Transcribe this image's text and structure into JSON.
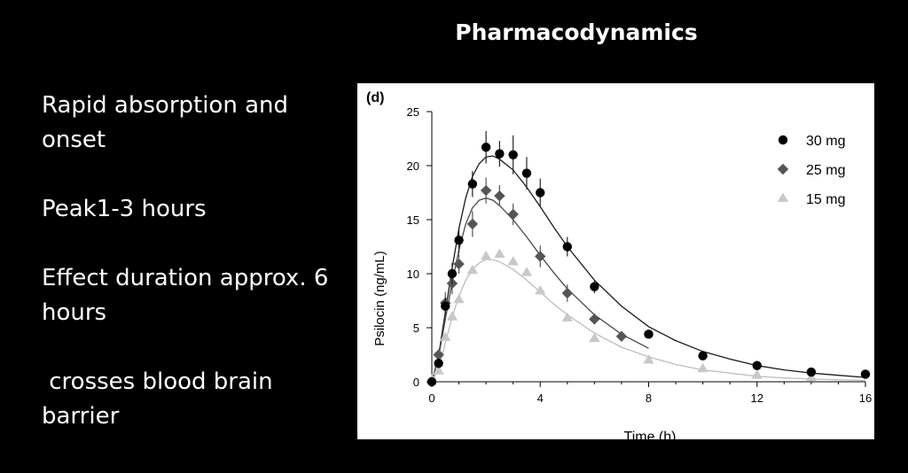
{
  "slide": {
    "title": "Pharmacodynamics",
    "bullets": [
      "Rapid absorption and onset",
      "Peak1-3 hours",
      "Effect duration approx. 6 hours",
      " crosses blood brain barrier"
    ]
  },
  "chart_data": {
    "type": "scatter",
    "panel_label": "(d)",
    "xlabel": "Time (h)",
    "ylabel": "Psilocin (ng/mL)",
    "xlim": [
      0,
      16
    ],
    "ylim": [
      0,
      25
    ],
    "xticks": [
      0,
      4,
      8,
      12,
      16
    ],
    "yticks": [
      0,
      5,
      10,
      15,
      20,
      25
    ],
    "legend_position": "top-right",
    "series": [
      {
        "name": "30 mg",
        "marker": "circle",
        "color": "#000000",
        "fit_color": "#1a1a1a",
        "x": [
          0,
          0.25,
          0.5,
          0.75,
          1,
          1.5,
          2,
          2.5,
          3,
          3.5,
          4,
          5,
          6,
          8,
          10,
          12,
          14,
          16
        ],
        "y": [
          0,
          1.7,
          7.0,
          10.0,
          13.1,
          18.3,
          21.7,
          21.1,
          21.0,
          19.3,
          17.5,
          12.5,
          8.8,
          4.4,
          2.4,
          1.5,
          0.9,
          0.7
        ],
        "err": [
          0,
          0.4,
          0.8,
          1.0,
          1.2,
          1.2,
          1.5,
          1.2,
          1.8,
          1.5,
          1.3,
          0.9,
          0.6,
          0.3,
          0,
          0,
          0,
          0
        ],
        "fit": {
          "x": [
            0,
            0.25,
            0.5,
            0.75,
            1,
            1.25,
            1.5,
            1.75,
            2,
            2.25,
            2.5,
            3,
            3.5,
            4,
            4.5,
            5,
            6,
            7,
            8,
            9,
            10,
            11,
            12,
            13,
            14,
            15,
            16
          ],
          "y": [
            0,
            2.4,
            6.5,
            10.5,
            14.2,
            17.0,
            19.0,
            20.2,
            20.8,
            20.9,
            20.6,
            19.6,
            18.0,
            16.2,
            14.3,
            12.5,
            9.4,
            7.0,
            5.1,
            3.8,
            2.8,
            2.1,
            1.5,
            1.1,
            0.8,
            0.6,
            0.4
          ]
        }
      },
      {
        "name": "25 mg",
        "marker": "diamond",
        "color": "#555555",
        "fit_color": "#4a4a4a",
        "x": [
          0.25,
          0.5,
          0.75,
          1,
          1.5,
          2,
          2.5,
          3,
          4,
          5,
          6,
          7
        ],
        "y": [
          2.5,
          7.3,
          9.1,
          10.9,
          14.6,
          17.7,
          17.2,
          15.5,
          11.6,
          8.2,
          5.8,
          4.2
        ],
        "err": [
          0.5,
          1.0,
          1.0,
          0.9,
          1.2,
          1.2,
          1.0,
          1.0,
          1.0,
          0.8,
          0.5,
          0.3
        ],
        "fit": {
          "x": [
            0,
            0.25,
            0.5,
            0.75,
            1,
            1.25,
            1.5,
            1.75,
            2,
            2.25,
            2.5,
            3,
            3.5,
            4,
            4.5,
            5,
            6,
            7,
            8
          ],
          "y": [
            0,
            2.3,
            5.8,
            9.2,
            12.2,
            14.6,
            16.1,
            16.8,
            17.0,
            16.8,
            16.3,
            15.0,
            13.4,
            11.7,
            10.1,
            8.6,
            6.2,
            4.4,
            3.1
          ]
        }
      },
      {
        "name": "15 mg",
        "marker": "triangle",
        "color": "#c8c8c8",
        "fit_color": "#bdbdbd",
        "x": [
          0,
          0.25,
          0.5,
          0.75,
          1,
          1.5,
          2,
          2.5,
          3,
          3.5,
          4,
          5,
          6,
          8,
          10,
          12,
          14
        ],
        "y": [
          0.2,
          1.0,
          4.1,
          6.0,
          7.6,
          10.3,
          11.6,
          11.8,
          11.1,
          10.1,
          8.4,
          5.9,
          4.0,
          2.0,
          1.2,
          0.6,
          0.4
        ],
        "err": [
          0,
          0,
          0,
          0,
          0,
          0,
          0,
          0,
          0,
          0,
          0,
          0,
          0,
          0,
          0,
          0,
          0
        ],
        "fit": {
          "x": [
            0,
            0.25,
            0.5,
            0.75,
            1,
            1.25,
            1.5,
            1.75,
            2,
            2.25,
            2.5,
            3,
            3.5,
            4,
            4.5,
            5,
            6,
            7,
            8,
            9,
            10,
            11,
            12,
            13,
            14,
            15,
            16
          ],
          "y": [
            0,
            1.2,
            3.6,
            6.0,
            7.9,
            9.4,
            10.4,
            11.0,
            11.3,
            11.3,
            11.1,
            10.4,
            9.4,
            8.3,
            7.2,
            6.2,
            4.5,
            3.2,
            2.3,
            1.6,
            1.1,
            0.8,
            0.5,
            0.35,
            0.25,
            0.18,
            0.12
          ]
        }
      }
    ]
  }
}
